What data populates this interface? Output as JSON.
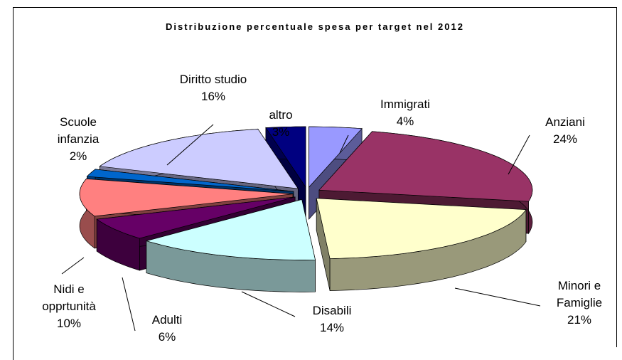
{
  "chart_data": {
    "type": "pie",
    "title": "Distribuzione percentuale spesa per target nel 2012",
    "categories": [
      "Immigrati",
      "Anziani",
      "Minori e Famiglie",
      "Disabili",
      "Adulti",
      "Nidi e opprtunità",
      "Scuole infanzia",
      "Diritto studio",
      "altro"
    ],
    "values": [
      4,
      24,
      21,
      14,
      6,
      10,
      2,
      16,
      3
    ],
    "value_labels": [
      "4%",
      "24%",
      "21%",
      "14%",
      "6%",
      "10%",
      "2%",
      "16%",
      "3%"
    ],
    "colors": [
      "#9999ff",
      "#993366",
      "#ffffcc",
      "#ccffff",
      "#660066",
      "#ff8080",
      "#0066cc",
      "#ccccff",
      "#000080"
    ]
  }
}
